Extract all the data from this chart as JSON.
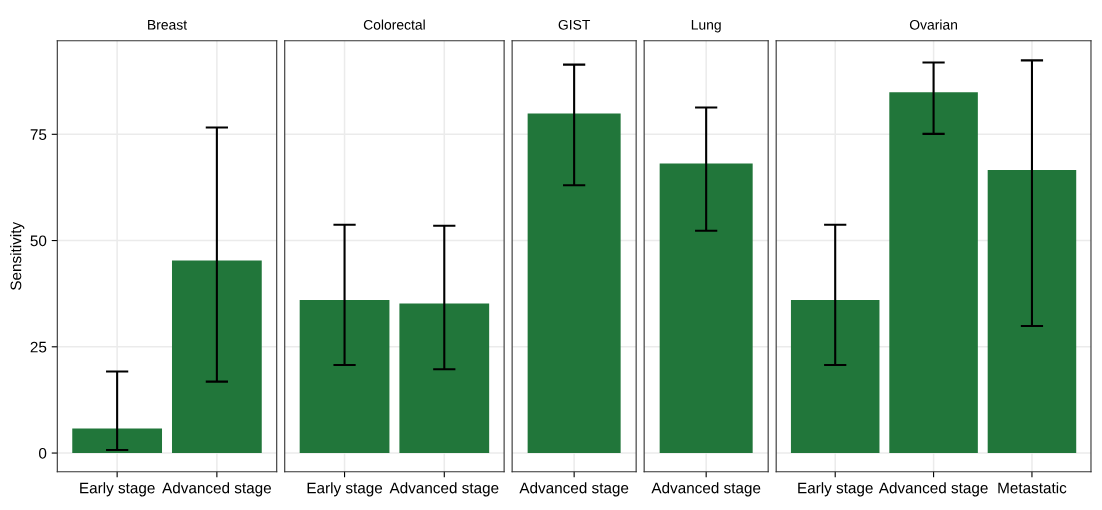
{
  "chart_data": [
    {
      "type": "bar",
      "title": "Breast",
      "ylabel": "Sensitivity",
      "categories": [
        "Early stage",
        "Advanced stage"
      ],
      "values": [
        5.8,
        45.3
      ],
      "errors": [
        [
          0.7,
          19.2
        ],
        [
          16.8,
          76.6
        ]
      ],
      "color": "#21763a",
      "ylim": [
        -4.4,
        97
      ],
      "yticks": [
        0,
        25,
        50,
        75
      ],
      "grid": true
    },
    {
      "type": "bar",
      "title": "Colorectal",
      "categories": [
        "Early stage",
        "Advanced stage"
      ],
      "values": [
        36.0,
        35.2
      ],
      "errors": [
        [
          20.7,
          53.7
        ],
        [
          19.7,
          53.5
        ]
      ],
      "color": "#21763a",
      "ylim": [
        -4.4,
        97
      ],
      "yticks": [
        0,
        25,
        50,
        75
      ],
      "grid": true,
      "tick_labels": "x"
    },
    {
      "type": "bar",
      "title": "GIST",
      "categories": [
        "Advanced stage"
      ],
      "values": [
        79.9
      ],
      "errors": [
        [
          63.0,
          91.4
        ]
      ],
      "color": "#21763a",
      "ylim": [
        -4.4,
        97
      ],
      "yticks": [
        0,
        25,
        50,
        75
      ],
      "grid": true,
      "tick_labels": "x"
    },
    {
      "type": "bar",
      "title": "Lung",
      "categories": [
        "Advanced stage"
      ],
      "values": [
        68.1
      ],
      "errors": [
        [
          52.3,
          81.3
        ]
      ],
      "color": "#21763a",
      "ylim": [
        -4.4,
        97
      ],
      "yticks": [
        0,
        25,
        50,
        75
      ],
      "grid": true,
      "tick_labels": "x"
    },
    {
      "type": "bar",
      "title": "Ovarian",
      "categories": [
        "Early stage",
        "Advanced stage",
        "Metastatic"
      ],
      "values": [
        36.0,
        84.9,
        66.6
      ],
      "errors": [
        [
          20.7,
          53.7
        ],
        [
          75.1,
          91.9
        ],
        [
          29.9,
          92.4
        ]
      ],
      "color": "#21763a",
      "ylim": [
        -4.4,
        97
      ],
      "yticks": [
        0,
        25,
        50,
        75
      ],
      "grid": true,
      "tick_labels": "x"
    }
  ]
}
